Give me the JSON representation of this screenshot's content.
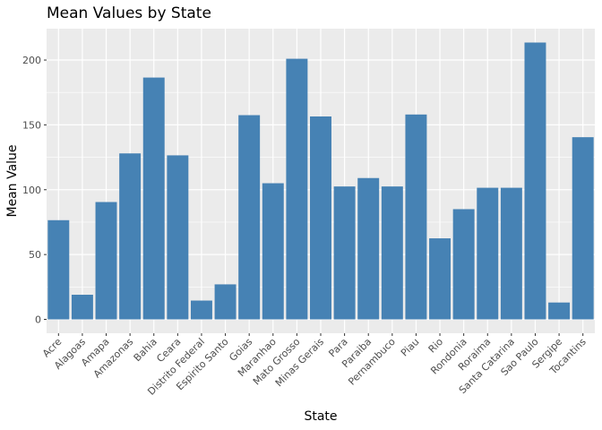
{
  "chart_data": {
    "type": "bar",
    "title": "Mean Values by State",
    "xlabel": "State",
    "ylabel": "Mean Value",
    "categories": [
      "Acre",
      "Alagoas",
      "Amapa",
      "Amazonas",
      "Bahia",
      "Ceara",
      "Distrito Federal",
      "Espirito Santo",
      "Goias",
      "Maranhao",
      "Mato Grosso",
      "Minas Gerais",
      "Para",
      "Paraiba",
      "Pernambuco",
      "Piau",
      "Rio",
      "Rondonia",
      "Roraima",
      "Santa Catarina",
      "Sao Paulo",
      "Sergipe",
      "Tocantins"
    ],
    "values": [
      76.5,
      19,
      90.5,
      128,
      186.5,
      126.5,
      14.5,
      27,
      157.5,
      105,
      201,
      156.5,
      102.5,
      109,
      102.5,
      158,
      62.5,
      85,
      101.5,
      101.5,
      213.5,
      13,
      140.5
    ],
    "yticks": [
      0,
      50,
      100,
      150,
      200
    ],
    "ylim": [
      -10.7,
      224.2
    ],
    "bar_color": "#4682B4",
    "panel_color": "#EBEBEB",
    "grid_color": "#FFFFFF",
    "grid": true,
    "legend": "none"
  }
}
